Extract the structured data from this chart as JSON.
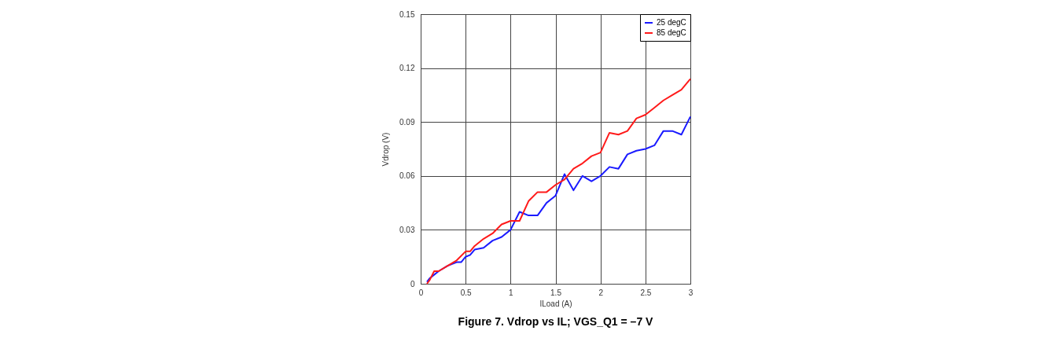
{
  "chart_data": {
    "type": "line",
    "title": "Figure 7. Vdrop vs IL; VGS_Q1 = –7 V",
    "xlabel": "ILoad (A)",
    "ylabel": "Vdrop (V)",
    "xlim": [
      0,
      3
    ],
    "xticks": [
      0,
      0.5,
      1,
      1.5,
      2,
      2.5,
      3
    ],
    "ylim": [
      0,
      0.15
    ],
    "yticks": [
      0,
      0.03,
      0.06,
      0.09,
      0.12,
      0.15
    ],
    "grid": true,
    "legend": "top right",
    "series": [
      {
        "name": "25 degC",
        "color": "#1a1aff",
        "x": [
          0.07,
          0.1,
          0.2,
          0.3,
          0.4,
          0.45,
          0.5,
          0.55,
          0.6,
          0.7,
          0.8,
          0.9,
          1.0,
          1.1,
          1.2,
          1.3,
          1.4,
          1.5,
          1.6,
          1.7,
          1.8,
          1.9,
          2.0,
          2.1,
          2.2,
          2.3,
          2.4,
          2.5,
          2.6,
          2.7,
          2.8,
          2.9,
          3.0
        ],
        "values": [
          0.001,
          0.003,
          0.007,
          0.01,
          0.012,
          0.012,
          0.015,
          0.016,
          0.019,
          0.02,
          0.024,
          0.026,
          0.03,
          0.04,
          0.038,
          0.038,
          0.045,
          0.049,
          0.061,
          0.052,
          0.06,
          0.057,
          0.06,
          0.065,
          0.064,
          0.072,
          0.074,
          0.075,
          0.077,
          0.085,
          0.085,
          0.083,
          0.093
        ]
      },
      {
        "name": "85 degC",
        "color": "#ff1a1a",
        "x": [
          0.07,
          0.1,
          0.15,
          0.2,
          0.3,
          0.4,
          0.5,
          0.55,
          0.6,
          0.7,
          0.8,
          0.9,
          1.0,
          1.1,
          1.2,
          1.3,
          1.4,
          1.5,
          1.6,
          1.7,
          1.8,
          1.9,
          2.0,
          2.1,
          2.2,
          2.3,
          2.4,
          2.5,
          2.6,
          2.7,
          2.8,
          2.9,
          3.0
        ],
        "values": [
          0,
          0.002,
          0.007,
          0.007,
          0.01,
          0.013,
          0.018,
          0.018,
          0.021,
          0.025,
          0.028,
          0.033,
          0.035,
          0.035,
          0.046,
          0.051,
          0.051,
          0.055,
          0.058,
          0.064,
          0.067,
          0.071,
          0.073,
          0.084,
          0.083,
          0.085,
          0.092,
          0.094,
          0.098,
          0.102,
          0.105,
          0.108,
          0.114
        ]
      }
    ]
  }
}
